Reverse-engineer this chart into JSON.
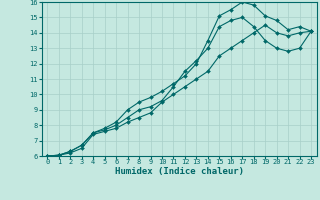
{
  "xlabel": "Humidex (Indice chaleur)",
  "xlim": [
    -0.5,
    23.5
  ],
  "ylim": [
    6,
    16
  ],
  "xticks": [
    0,
    1,
    2,
    3,
    4,
    5,
    6,
    7,
    8,
    9,
    10,
    11,
    12,
    13,
    14,
    15,
    16,
    17,
    18,
    19,
    20,
    21,
    22,
    23
  ],
  "yticks": [
    6,
    7,
    8,
    9,
    10,
    11,
    12,
    13,
    14,
    15,
    16
  ],
  "background_color": "#c5e8e0",
  "grid_color": "#a8cfc8",
  "line_color": "#006868",
  "line1_x": [
    0,
    1,
    2,
    3,
    4,
    5,
    6,
    7,
    8,
    9,
    10,
    11,
    12,
    13,
    14,
    15,
    16,
    17,
    18,
    19,
    20,
    21,
    22,
    23
  ],
  "line1_y": [
    6.0,
    6.05,
    6.3,
    6.7,
    7.5,
    7.8,
    8.2,
    9.0,
    9.5,
    9.8,
    10.2,
    10.7,
    11.2,
    12.0,
    13.5,
    15.1,
    15.5,
    16.0,
    15.8,
    15.1,
    14.8,
    14.2,
    14.4,
    14.1
  ],
  "line2_x": [
    0,
    1,
    2,
    3,
    4,
    5,
    6,
    7,
    8,
    9,
    10,
    11,
    12,
    13,
    14,
    15,
    16,
    17,
    18,
    19,
    20,
    21,
    22,
    23
  ],
  "line2_y": [
    6.0,
    6.05,
    6.3,
    6.7,
    7.5,
    7.7,
    8.0,
    8.5,
    9.0,
    9.2,
    9.6,
    10.5,
    11.5,
    12.2,
    13.0,
    14.4,
    14.8,
    15.0,
    14.4,
    13.5,
    13.0,
    12.8,
    13.0,
    14.1
  ],
  "line3_x": [
    0,
    1,
    2,
    3,
    4,
    5,
    6,
    7,
    8,
    9,
    10,
    11,
    12,
    13,
    14,
    15,
    16,
    17,
    18,
    19,
    20,
    21,
    22,
    23
  ],
  "line3_y": [
    6.0,
    6.05,
    6.2,
    6.5,
    7.4,
    7.6,
    7.8,
    8.2,
    8.5,
    8.8,
    9.5,
    10.0,
    10.5,
    11.0,
    11.5,
    12.5,
    13.0,
    13.5,
    14.0,
    14.5,
    14.0,
    13.8,
    14.0,
    14.1
  ],
  "marker": "D",
  "markersize": 2.0,
  "linewidth": 0.8,
  "tick_fontsize": 5.0,
  "xlabel_fontsize": 6.5
}
